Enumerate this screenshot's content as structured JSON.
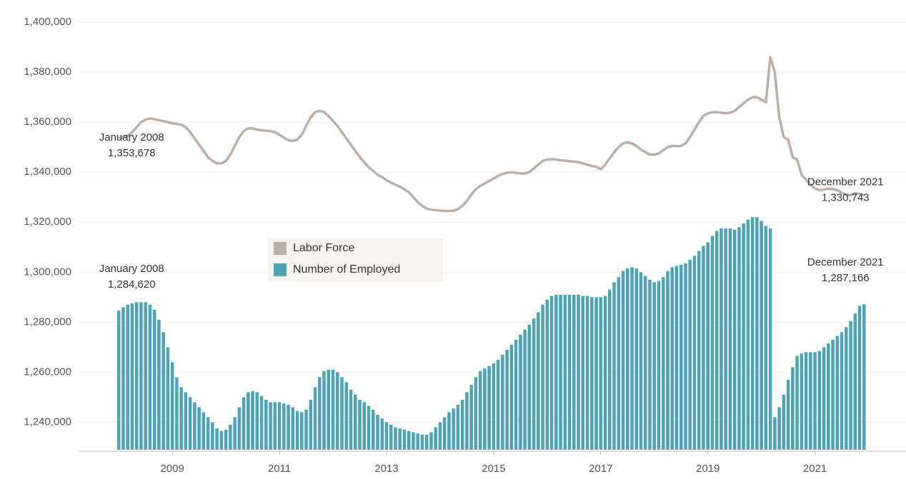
{
  "chart_data": {
    "type": "bar-line",
    "x": [
      "2008-01",
      "2008-02",
      "2008-03",
      "2008-04",
      "2008-05",
      "2008-06",
      "2008-07",
      "2008-08",
      "2008-09",
      "2008-10",
      "2008-11",
      "2008-12",
      "2009-01",
      "2009-02",
      "2009-03",
      "2009-04",
      "2009-05",
      "2009-06",
      "2009-07",
      "2009-08",
      "2009-09",
      "2009-10",
      "2009-11",
      "2009-12",
      "2010-01",
      "2010-02",
      "2010-03",
      "2010-04",
      "2010-05",
      "2010-06",
      "2010-07",
      "2010-08",
      "2010-09",
      "2010-10",
      "2010-11",
      "2010-12",
      "2011-01",
      "2011-02",
      "2011-03",
      "2011-04",
      "2011-05",
      "2011-06",
      "2011-07",
      "2011-08",
      "2011-09",
      "2011-10",
      "2011-11",
      "2011-12",
      "2012-01",
      "2012-02",
      "2012-03",
      "2012-04",
      "2012-05",
      "2012-06",
      "2012-07",
      "2012-08",
      "2012-09",
      "2012-10",
      "2012-11",
      "2012-12",
      "2013-01",
      "2013-02",
      "2013-03",
      "2013-04",
      "2013-05",
      "2013-06",
      "2013-07",
      "2013-08",
      "2013-09",
      "2013-10",
      "2013-11",
      "2013-12",
      "2014-01",
      "2014-02",
      "2014-03",
      "2014-04",
      "2014-05",
      "2014-06",
      "2014-07",
      "2014-08",
      "2014-09",
      "2014-10",
      "2014-11",
      "2014-12",
      "2015-01",
      "2015-02",
      "2015-03",
      "2015-04",
      "2015-05",
      "2015-06",
      "2015-07",
      "2015-08",
      "2015-09",
      "2015-10",
      "2015-11",
      "2015-12",
      "2016-01",
      "2016-02",
      "2016-03",
      "2016-04",
      "2016-05",
      "2016-06",
      "2016-07",
      "2016-08",
      "2016-09",
      "2016-10",
      "2016-11",
      "2016-12",
      "2017-01",
      "2017-02",
      "2017-03",
      "2017-04",
      "2017-05",
      "2017-06",
      "2017-07",
      "2017-08",
      "2017-09",
      "2017-10",
      "2017-11",
      "2017-12",
      "2018-01",
      "2018-02",
      "2018-03",
      "2018-04",
      "2018-05",
      "2018-06",
      "2018-07",
      "2018-08",
      "2018-09",
      "2018-10",
      "2018-11",
      "2018-12",
      "2019-01",
      "2019-02",
      "2019-03",
      "2019-04",
      "2019-05",
      "2019-06",
      "2019-07",
      "2019-08",
      "2019-09",
      "2019-10",
      "2019-11",
      "2019-12",
      "2020-01",
      "2020-02",
      "2020-03",
      "2020-04",
      "2020-05",
      "2020-06",
      "2020-07",
      "2020-08",
      "2020-09",
      "2020-10",
      "2020-11",
      "2020-12",
      "2021-01",
      "2021-02",
      "2021-03",
      "2021-04",
      "2021-05",
      "2021-06",
      "2021-07",
      "2021-08",
      "2021-09",
      "2021-10",
      "2021-11",
      "2021-12"
    ],
    "series": [
      {
        "name": "Labor Force",
        "kind": "line",
        "color": "#bcaea8",
        "values": [
          1353678,
          1354000,
          1354500,
          1356000,
          1358000,
          1360000,
          1361000,
          1361500,
          1361200,
          1360800,
          1360400,
          1360000,
          1359600,
          1359300,
          1359000,
          1358000,
          1356000,
          1353500,
          1351000,
          1348500,
          1346000,
          1344500,
          1343500,
          1343500,
          1344500,
          1347000,
          1350500,
          1354000,
          1356500,
          1357500,
          1357500,
          1357000,
          1356800,
          1356600,
          1356400,
          1356000,
          1355000,
          1353800,
          1352800,
          1352500,
          1353000,
          1355000,
          1358500,
          1362000,
          1364000,
          1364500,
          1364000,
          1362500,
          1360500,
          1358500,
          1356000,
          1353500,
          1351000,
          1348500,
          1346000,
          1344000,
          1342000,
          1340500,
          1339000,
          1338000,
          1336800,
          1335800,
          1335000,
          1334200,
          1333200,
          1332000,
          1330000,
          1328000,
          1326500,
          1325500,
          1325000,
          1324800,
          1324600,
          1324500,
          1324500,
          1324600,
          1325200,
          1326500,
          1328500,
          1331000,
          1333200,
          1334500,
          1335500,
          1336500,
          1337500,
          1338500,
          1339300,
          1339800,
          1340000,
          1339800,
          1339500,
          1339500,
          1340000,
          1341500,
          1343000,
          1344500,
          1345000,
          1345200,
          1345000,
          1344800,
          1344600,
          1344400,
          1344200,
          1344000,
          1343500,
          1343000,
          1342500,
          1342200,
          1341200,
          1343000,
          1345500,
          1348000,
          1350000,
          1351500,
          1352000,
          1351500,
          1350500,
          1349000,
          1348000,
          1347000,
          1347000,
          1347500,
          1348800,
          1350000,
          1350500,
          1350400,
          1350500,
          1351500,
          1354000,
          1357000,
          1360000,
          1362500,
          1363500,
          1364000,
          1364000,
          1363800,
          1363600,
          1363800,
          1364500,
          1366000,
          1367500,
          1369000,
          1370000,
          1370000,
          1369000,
          1368000,
          1386000,
          1380000,
          1362000,
          1354000,
          1353000,
          1346000,
          1345000,
          1339000,
          1337000,
          1335000,
          1333500,
          1332800,
          1333000,
          1333400,
          1333200,
          1332800,
          1331800,
          1331000,
          1330800,
          1331600,
          1331400,
          1330743
        ],
        "labels": {
          "start": {
            "date": "January 2008",
            "value": "1,353,678"
          },
          "end": {
            "date": "December 2021",
            "value": "1,330,743"
          }
        }
      },
      {
        "name": "Number of Employed",
        "kind": "bar",
        "color": "#4fa3b6",
        "values": [
          1284620,
          1286000,
          1287000,
          1287500,
          1288000,
          1288000,
          1288000,
          1287000,
          1285000,
          1281000,
          1276000,
          1270000,
          1264000,
          1258000,
          1254000,
          1252000,
          1250000,
          1248000,
          1246000,
          1244000,
          1242000,
          1240000,
          1237500,
          1236500,
          1237000,
          1239000,
          1242000,
          1246000,
          1250000,
          1252000,
          1252500,
          1252000,
          1250500,
          1249000,
          1248000,
          1248000,
          1248000,
          1247500,
          1247000,
          1246000,
          1244500,
          1244000,
          1245000,
          1249000,
          1254000,
          1258000,
          1260500,
          1261000,
          1261000,
          1260000,
          1258000,
          1256000,
          1253000,
          1251000,
          1249000,
          1248000,
          1246500,
          1245000,
          1243000,
          1241500,
          1240000,
          1239000,
          1238000,
          1237500,
          1237000,
          1236500,
          1236000,
          1235500,
          1235000,
          1235000,
          1236000,
          1238000,
          1240000,
          1242000,
          1244000,
          1245500,
          1247000,
          1249000,
          1252000,
          1255000,
          1258000,
          1260500,
          1261500,
          1262500,
          1263500,
          1265000,
          1267000,
          1269000,
          1271000,
          1273000,
          1275000,
          1277000,
          1279000,
          1281500,
          1284000,
          1287000,
          1289000,
          1290500,
          1291000,
          1291000,
          1291000,
          1291000,
          1291000,
          1291000,
          1290500,
          1290500,
          1290000,
          1290000,
          1290000,
          1290500,
          1293000,
          1296000,
          1298000,
          1300500,
          1301500,
          1302000,
          1301500,
          1300000,
          1298500,
          1297000,
          1296000,
          1296500,
          1298000,
          1300500,
          1302000,
          1302500,
          1303000,
          1303500,
          1305000,
          1306500,
          1308500,
          1310500,
          1312000,
          1314500,
          1316500,
          1317500,
          1317500,
          1317500,
          1317000,
          1318000,
          1319500,
          1321000,
          1322000,
          1322000,
          1320500,
          1318500,
          1317500,
          1242000,
          1246000,
          1251000,
          1257000,
          1262000,
          1266500,
          1267500,
          1268000,
          1268000,
          1268000,
          1268500,
          1270000,
          1271500,
          1273000,
          1274500,
          1276000,
          1278000,
          1280500,
          1283500,
          1286500,
          1287166
        ],
        "labels": {
          "start": {
            "date": "January 2008",
            "value": "1,284,620"
          },
          "end": {
            "date": "December 2021",
            "value": "1,287,166"
          }
        }
      }
    ],
    "xlim": [
      2007.25,
      2022.7
    ],
    "xticks": [
      2009,
      2011,
      2013,
      2015,
      2017,
      2019,
      2021
    ],
    "ylim": [
      1229000,
      1406000
    ],
    "yticks": [
      {
        "value": 1240000,
        "label": "1,240,000"
      },
      {
        "value": 1260000,
        "label": "1,260,000"
      },
      {
        "value": 1280000,
        "label": "1,280,000"
      },
      {
        "value": 1300000,
        "label": "1,300,000"
      },
      {
        "value": 1320000,
        "label": "1,320,000"
      },
      {
        "value": 1340000,
        "label": "1,340,000"
      },
      {
        "value": 1360000,
        "label": "1,360,000"
      },
      {
        "value": 1380000,
        "label": "1,380,000"
      },
      {
        "value": 1400000,
        "label": "1,400,000"
      }
    ],
    "grid": true
  }
}
